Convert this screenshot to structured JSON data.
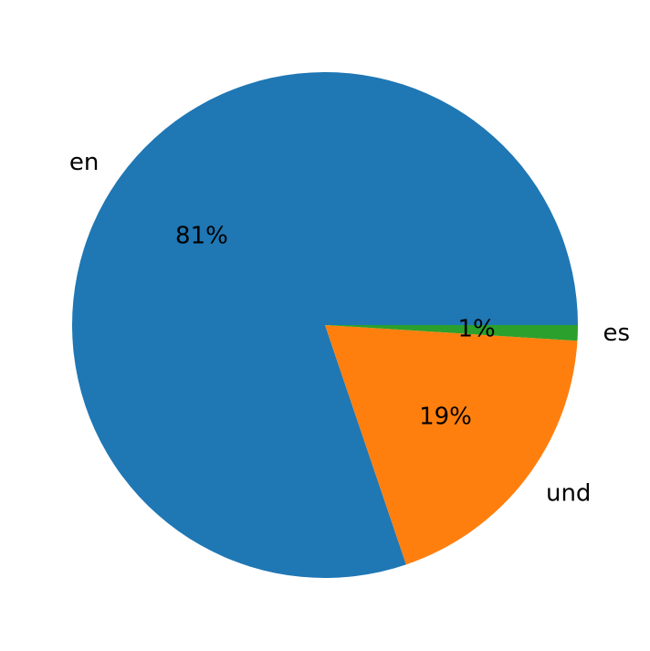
{
  "chart_data": {
    "type": "pie",
    "categories": [
      "en",
      "und",
      "es"
    ],
    "values": [
      81,
      19,
      1
    ],
    "value_labels": [
      "81%",
      "19%",
      "1%"
    ],
    "colors": [
      "#1f77b4",
      "#ff7f0e",
      "#2ca02c"
    ]
  }
}
